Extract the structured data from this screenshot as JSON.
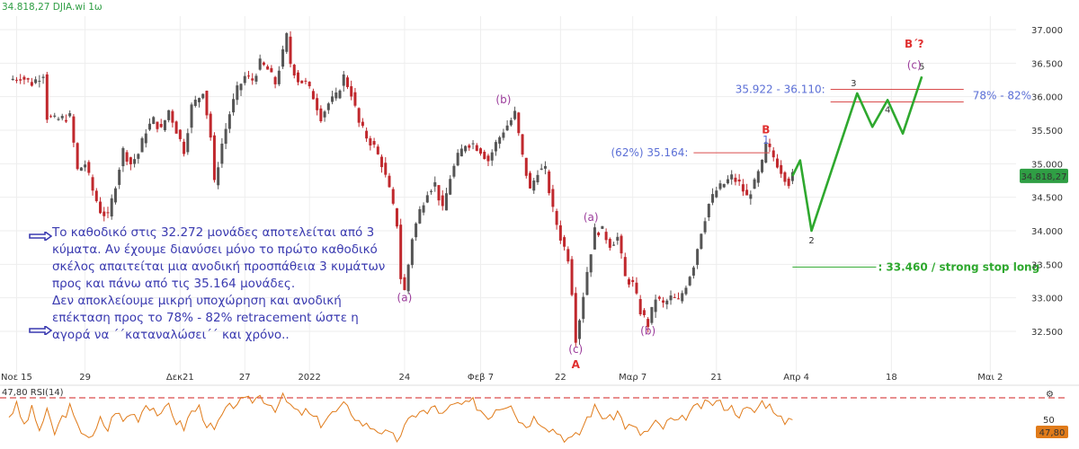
{
  "header": {
    "title": "34.818,27 DJIA.wi 1ω"
  },
  "price_axis": {
    "ticks": [
      37000,
      36500,
      36000,
      35500,
      35000,
      34500,
      34000,
      33500,
      33000,
      32500
    ],
    "tick_labels": [
      "37.000",
      "36.500",
      "36.000",
      "35.500",
      "35.000",
      "34.500",
      "34.000",
      "33.500",
      "33.000",
      "32.500"
    ],
    "last_price_label": "34.818,27",
    "last_price": 34818.27
  },
  "time_axis": {
    "labels": [
      {
        "text": "Νοε 15",
        "bar": 2
      },
      {
        "text": "29",
        "bar": 20
      },
      {
        "text": "Δεκ21",
        "bar": 45
      },
      {
        "text": "27",
        "bar": 62
      },
      {
        "text": "2022",
        "bar": 79
      },
      {
        "text": "24",
        "bar": 104
      },
      {
        "text": "Φεβ 7",
        "bar": 124
      },
      {
        "text": "22",
        "bar": 145
      },
      {
        "text": "Μαρ 7",
        "bar": 164
      },
      {
        "text": "21",
        "bar": 186
      },
      {
        "text": "Απρ 4",
        "bar": 207
      },
      {
        "text": "18",
        "bar": 232
      },
      {
        "text": "Μαι 2",
        "bar": 258
      }
    ]
  },
  "rsi": {
    "label": "47,80 RSI(14)",
    "level_label": "50",
    "value_label": "47,80",
    "upper_level": 70,
    "value": 47.8
  },
  "chart_data": {
    "type": "candlestick",
    "symbol": "DJIA.wi",
    "interval": "1ω",
    "ylim": [
      32200,
      37300
    ],
    "close_path": [
      [
        0,
        36250
      ],
      [
        3,
        36300
      ],
      [
        6,
        36200
      ],
      [
        9,
        36350
      ],
      [
        10,
        35700
      ],
      [
        12,
        35650
      ],
      [
        16,
        35700
      ],
      [
        18,
        34900
      ],
      [
        20,
        35000
      ],
      [
        22,
        34600
      ],
      [
        24,
        34300
      ],
      [
        26,
        34200
      ],
      [
        28,
        34700
      ],
      [
        30,
        35200
      ],
      [
        32,
        35000
      ],
      [
        34,
        35150
      ],
      [
        36,
        35500
      ],
      [
        38,
        35650
      ],
      [
        40,
        35500
      ],
      [
        42,
        35800
      ],
      [
        44,
        35500
      ],
      [
        46,
        35200
      ],
      [
        48,
        35850
      ],
      [
        50,
        36000
      ],
      [
        51,
        36100
      ],
      [
        53,
        35400
      ],
      [
        54,
        34700
      ],
      [
        56,
        35300
      ],
      [
        58,
        35750
      ],
      [
        60,
        36100
      ],
      [
        62,
        36300
      ],
      [
        64,
        36250
      ],
      [
        66,
        36500
      ],
      [
        68,
        36400
      ],
      [
        70,
        36200
      ],
      [
        72,
        36650
      ],
      [
        73,
        36900
      ],
      [
        74,
        36500
      ],
      [
        76,
        36250
      ],
      [
        78,
        36200
      ],
      [
        80,
        36000
      ],
      [
        82,
        35700
      ],
      [
        84,
        35900
      ],
      [
        86,
        36000
      ],
      [
        88,
        36300
      ],
      [
        90,
        36050
      ],
      [
        92,
        35600
      ],
      [
        94,
        35400
      ],
      [
        96,
        35250
      ],
      [
        98,
        35000
      ],
      [
        100,
        34600
      ],
      [
        102,
        34100
      ],
      [
        103,
        33300
      ],
      [
        104,
        33100
      ],
      [
        106,
        33900
      ],
      [
        108,
        34300
      ],
      [
        110,
        34600
      ],
      [
        112,
        34700
      ],
      [
        114,
        34300
      ],
      [
        116,
        34800
      ],
      [
        118,
        35100
      ],
      [
        120,
        35300
      ],
      [
        122,
        35300
      ],
      [
        124,
        35200
      ],
      [
        126,
        35050
      ],
      [
        128,
        35300
      ],
      [
        130,
        35500
      ],
      [
        132,
        35650
      ],
      [
        133,
        35750
      ],
      [
        135,
        35100
      ],
      [
        137,
        34600
      ],
      [
        139,
        34900
      ],
      [
        141,
        34900
      ],
      [
        143,
        34300
      ],
      [
        145,
        33900
      ],
      [
        147,
        33600
      ],
      [
        148,
        33100
      ],
      [
        149,
        32400
      ],
      [
        150,
        32700
      ],
      [
        152,
        33400
      ],
      [
        154,
        34000
      ],
      [
        156,
        34000
      ],
      [
        158,
        33800
      ],
      [
        160,
        33900
      ],
      [
        162,
        33300
      ],
      [
        164,
        33200
      ],
      [
        166,
        32800
      ],
      [
        168,
        32600
      ],
      [
        170,
        33000
      ],
      [
        172,
        32900
      ],
      [
        174,
        33000
      ],
      [
        176,
        32950
      ],
      [
        178,
        33200
      ],
      [
        180,
        33500
      ],
      [
        182,
        34000
      ],
      [
        184,
        34400
      ],
      [
        186,
        34600
      ],
      [
        188,
        34700
      ],
      [
        190,
        34800
      ],
      [
        192,
        34700
      ],
      [
        194,
        34500
      ],
      [
        196,
        34700
      ],
      [
        198,
        35000
      ],
      [
        199,
        35280
      ],
      [
        200,
        35200
      ],
      [
        202,
        35000
      ],
      [
        204,
        34800
      ],
      [
        205,
        34720
      ],
      [
        206,
        34818
      ]
    ],
    "rsi_ylim": [
      20,
      80
    ],
    "rsi_path": [
      [
        0,
        52
      ],
      [
        2,
        62
      ],
      [
        4,
        42
      ],
      [
        6,
        58
      ],
      [
        8,
        38
      ],
      [
        10,
        55
      ],
      [
        12,
        34
      ],
      [
        14,
        50
      ],
      [
        16,
        60
      ],
      [
        18,
        40
      ],
      [
        20,
        35
      ],
      [
        22,
        28
      ],
      [
        24,
        48
      ],
      [
        26,
        38
      ],
      [
        28,
        58
      ],
      [
        30,
        46
      ],
      [
        32,
        55
      ],
      [
        34,
        50
      ],
      [
        36,
        64
      ],
      [
        38,
        60
      ],
      [
        40,
        50
      ],
      [
        42,
        64
      ],
      [
        44,
        46
      ],
      [
        46,
        40
      ],
      [
        48,
        56
      ],
      [
        50,
        60
      ],
      [
        52,
        44
      ],
      [
        54,
        36
      ],
      [
        56,
        52
      ],
      [
        58,
        60
      ],
      [
        60,
        66
      ],
      [
        62,
        66
      ],
      [
        64,
        68
      ],
      [
        66,
        72
      ],
      [
        68,
        66
      ],
      [
        70,
        60
      ],
      [
        72,
        70
      ],
      [
        74,
        62
      ],
      [
        76,
        54
      ],
      [
        78,
        56
      ],
      [
        80,
        50
      ],
      [
        82,
        44
      ],
      [
        84,
        52
      ],
      [
        86,
        56
      ],
      [
        88,
        62
      ],
      [
        90,
        56
      ],
      [
        92,
        46
      ],
      [
        94,
        42
      ],
      [
        96,
        40
      ],
      [
        98,
        36
      ],
      [
        100,
        32
      ],
      [
        102,
        28
      ],
      [
        104,
        40
      ],
      [
        106,
        50
      ],
      [
        108,
        58
      ],
      [
        110,
        54
      ],
      [
        112,
        62
      ],
      [
        114,
        52
      ],
      [
        116,
        60
      ],
      [
        118,
        64
      ],
      [
        120,
        62
      ],
      [
        122,
        66
      ],
      [
        124,
        58
      ],
      [
        126,
        50
      ],
      [
        128,
        60
      ],
      [
        130,
        62
      ],
      [
        132,
        66
      ],
      [
        134,
        48
      ],
      [
        136,
        42
      ],
      [
        138,
        50
      ],
      [
        140,
        46
      ],
      [
        142,
        40
      ],
      [
        144,
        36
      ],
      [
        146,
        30
      ],
      [
        148,
        28
      ],
      [
        150,
        34
      ],
      [
        152,
        50
      ],
      [
        154,
        60
      ],
      [
        156,
        52
      ],
      [
        158,
        48
      ],
      [
        160,
        56
      ],
      [
        162,
        42
      ],
      [
        164,
        40
      ],
      [
        166,
        34
      ],
      [
        168,
        36
      ],
      [
        170,
        44
      ],
      [
        172,
        40
      ],
      [
        174,
        48
      ],
      [
        176,
        44
      ],
      [
        178,
        52
      ],
      [
        180,
        58
      ],
      [
        182,
        62
      ],
      [
        184,
        64
      ],
      [
        186,
        66
      ],
      [
        188,
        62
      ],
      [
        190,
        60
      ],
      [
        192,
        54
      ],
      [
        194,
        58
      ],
      [
        196,
        56
      ],
      [
        198,
        66
      ],
      [
        200,
        62
      ],
      [
        202,
        56
      ],
      [
        204,
        42
      ],
      [
        206,
        47.8
      ]
    ],
    "projection": {
      "color": "#2ea82e",
      "points": [
        [
          206,
          34818
        ],
        [
          208,
          35050
        ],
        [
          211,
          34000
        ],
        [
          223,
          36050
        ],
        [
          227,
          35550
        ],
        [
          231,
          35950
        ],
        [
          235,
          35450
        ],
        [
          240,
          36300
        ]
      ],
      "point_labels": [
        {
          "text": "2",
          "point": 2
        },
        {
          "text": "3",
          "point": 3
        },
        {
          "text": "4",
          "point": 5
        },
        {
          "text": "5",
          "point": 7
        }
      ]
    },
    "levels": [
      {
        "label": "(62%) 35.164:",
        "value": 35164,
        "from": 180,
        "to": 200,
        "color": "#d94c4c"
      },
      {
        "label": "35.922 - 36.110:",
        "value": 36110,
        "from": 216,
        "to": 251,
        "color": "#d94c4c"
      },
      {
        "label": "",
        "value": 35922,
        "from": 216,
        "to": 251,
        "color": "#d94c4c"
      },
      {
        "label": ": 33.460 / strong stop long",
        "value": 33460,
        "from": 206,
        "to": 228,
        "color": "#2ea82e"
      }
    ],
    "range_label": "78% - 82%",
    "wave_labels": [
      {
        "text": "(a)",
        "bar": 104,
        "price": 32950,
        "color": "#9b3c9b"
      },
      {
        "text": "(b)",
        "bar": 130,
        "price": 35900,
        "color": "#9b3c9b"
      },
      {
        "text": "(c)",
        "bar": 149,
        "price": 32180,
        "color": "#9b3c9b"
      },
      {
        "text": "A",
        "bar": 149,
        "price": 31950,
        "color": "#e03030"
      },
      {
        "text": "(a)",
        "bar": 153,
        "price": 34150,
        "color": "#9b3c9b"
      },
      {
        "text": "(b)",
        "bar": 168,
        "price": 32450,
        "color": "#9b3c9b"
      },
      {
        "text": "B",
        "bar": 199,
        "price": 35450,
        "color": "#e03030"
      },
      {
        "text": "1",
        "bar": 199,
        "price": 35300,
        "color": "#5b6fd6"
      },
      {
        "text": "(c)",
        "bar": 238,
        "price": 36420,
        "color": "#9b3c9b"
      },
      {
        "text": "B΄?",
        "bar": 238,
        "price": 36730,
        "color": "#e03030"
      }
    ]
  },
  "notes": [
    "Το καθοδικό στις 32.272 μονάδες αποτελείται από 3 κύματα. Αν έχουμε διανύσει μόνο το πρώτο καθοδικό σκέλος απαιτείται μια ανοδική προσπάθεια 3 κυμάτων προς και πάνω από τις 35.164 μονάδες.",
    "Δεν αποκλείουμε μικρή υποχώρηση και ανοδική επέκταση προς το 78% - 82% retracement ώστε η αγορά να ΄΄καταναλώσει΄΄ και χρόνο.."
  ],
  "colors": {
    "up": "#555555",
    "down": "#c0282d",
    "rsi": "#e07b1a",
    "rsi_level": "#d94c4c",
    "notes": "#3a3ab0",
    "last_price_bg": "#2f9e44"
  }
}
